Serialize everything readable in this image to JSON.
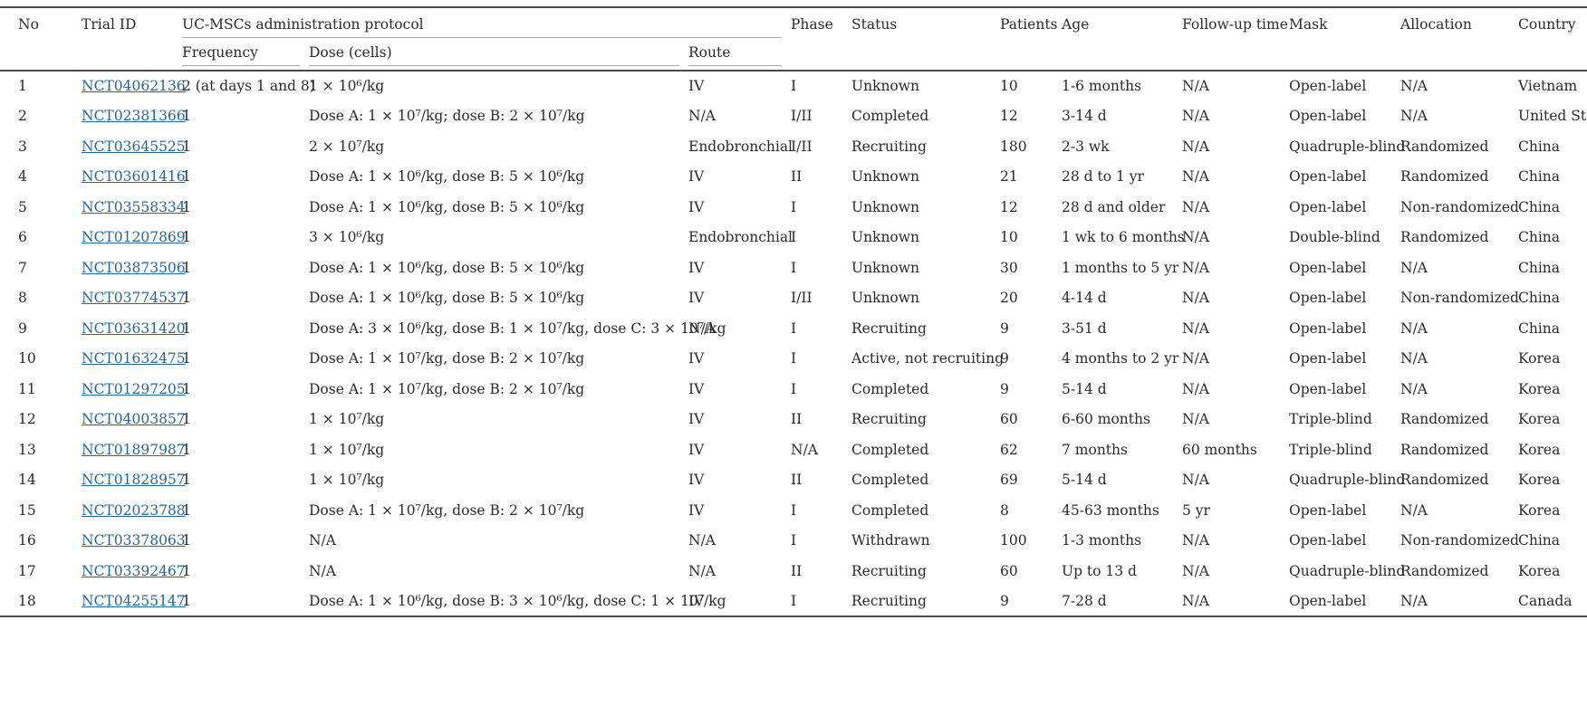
{
  "colors": {
    "background": "#ffffff",
    "text": "#2b2b2b",
    "link_blue": "#26679a",
    "rule_dark": "#4a4a4a",
    "rule_light": "#a9a9a9"
  },
  "table": {
    "group_header": "UC-MSCs administration protocol",
    "headers": {
      "no": "No",
      "trial_id": "Trial ID",
      "frequency": "Frequency",
      "dose": "Dose (cells)",
      "route": "Route",
      "phase": "Phase",
      "status": "Status",
      "patients": "Patients",
      "age": "Age",
      "follow_up": "Follow-up time",
      "mask": "Mask",
      "allocation": "Allocation",
      "country": "Country"
    },
    "rows": [
      [
        "1",
        "NCT04062136",
        "2 (at days 1 and 8)",
        "1 × 10⁶/kg",
        "IV",
        "I",
        "Unknown",
        "10",
        "1-6 months",
        "N/A",
        "Open-label",
        "N/A",
        "Vietnam"
      ],
      [
        "2",
        "NCT02381366",
        "1",
        "Dose A: 1 × 10⁷/kg; dose B: 2 × 10⁷/kg",
        "N/A",
        "I/II",
        "Completed",
        "12",
        "3-14 d",
        "N/A",
        "Open-label",
        "N/A",
        "United States"
      ],
      [
        "3",
        "NCT03645525",
        "1",
        "2 × 10⁷/kg",
        "Endobronchial",
        "I/II",
        "Recruiting",
        "180",
        "2-3 wk",
        "N/A",
        "Quadruple-blind",
        "Randomized",
        "China"
      ],
      [
        "4",
        "NCT03601416",
        "1",
        "Dose A: 1 × 10⁶/kg, dose B: 5 × 10⁶/kg",
        "IV",
        "II",
        "Unknown",
        "21",
        "28 d to 1 yr",
        "N/A",
        "Open-label",
        "Randomized",
        "China"
      ],
      [
        "5",
        "NCT03558334",
        "1",
        "Dose A: 1 × 10⁶/kg, dose B: 5 × 10⁶/kg",
        "IV",
        "I",
        "Unknown",
        "12",
        "28 d and older",
        "N/A",
        "Open-label",
        "Non-randomized",
        "China"
      ],
      [
        "6",
        "NCT01207869",
        "1",
        "3 × 10⁶/kg",
        "Endobronchial",
        "I",
        "Unknown",
        "10",
        "1 wk to 6 months",
        "N/A",
        "Double-blind",
        "Randomized",
        "China"
      ],
      [
        "7",
        "NCT03873506",
        "1",
        "Dose A: 1 × 10⁶/kg, dose B: 5 × 10⁶/kg",
        "IV",
        "I",
        "Unknown",
        "30",
        "1 months to 5 yr",
        "N/A",
        "Open-label",
        "N/A",
        "China"
      ],
      [
        "8",
        "NCT03774537",
        "1",
        "Dose A: 1 × 10⁶/kg, dose B: 5 × 10⁶/kg",
        "IV",
        "I/II",
        "Unknown",
        "20",
        "4-14 d",
        "N/A",
        "Open-label",
        "Non-randomized",
        "China"
      ],
      [
        "9",
        "NCT03631420",
        "1",
        "Dose A: 3 × 10⁶/kg, dose B: 1 × 10⁷/kg, dose C: 3 × 10⁷/kg",
        "N/A",
        "I",
        "Recruiting",
        "9",
        "3-51 d",
        "N/A",
        "Open-label",
        "N/A",
        "China"
      ],
      [
        "10",
        "NCT01632475",
        "1",
        "Dose A: 1 × 10⁷/kg, dose B: 2 × 10⁷/kg",
        "IV",
        "I",
        "Active, not recruiting",
        "9",
        "4 months to 2 yr",
        "N/A",
        "Open-label",
        "N/A",
        "Korea"
      ],
      [
        "11",
        "NCT01297205",
        "1",
        "Dose A: 1 × 10⁷/kg, dose B: 2 × 10⁷/kg",
        "IV",
        "I",
        "Completed",
        "9",
        "5-14 d",
        "N/A",
        "Open-label",
        "N/A",
        "Korea"
      ],
      [
        "12",
        "NCT04003857",
        "1",
        "1 × 10⁷/kg",
        "IV",
        "II",
        "Recruiting",
        "60",
        "6-60 months",
        "N/A",
        "Triple-blind",
        "Randomized",
        "Korea"
      ],
      [
        "13",
        "NCT01897987",
        "1",
        "1 × 10⁷/kg",
        "IV",
        "N/A",
        "Completed",
        "62",
        "7 months",
        "60 months",
        "Triple-blind",
        "Randomized",
        "Korea"
      ],
      [
        "14",
        "NCT01828957",
        "1",
        "1 × 10⁷/kg",
        "IV",
        "II",
        "Completed",
        "69",
        "5-14 d",
        "N/A",
        "Quadruple-blind",
        "Randomized",
        "Korea"
      ],
      [
        "15",
        "NCT02023788",
        "1",
        "Dose A: 1 × 10⁷/kg, dose B: 2 × 10⁷/kg",
        "IV",
        "I",
        "Completed",
        "8",
        "45-63 months",
        "5 yr",
        "Open-label",
        "N/A",
        "Korea"
      ],
      [
        "16",
        "NCT03378063",
        "1",
        "N/A",
        "N/A",
        "I",
        "Withdrawn",
        "100",
        "1-3 months",
        "N/A",
        "Open-label",
        "Non-randomized",
        "China"
      ],
      [
        "17",
        "NCT03392467",
        "1",
        "N/A",
        "N/A",
        "II",
        "Recruiting",
        "60",
        "Up to 13 d",
        "N/A",
        "Quadruple-blind",
        "Randomized",
        "Korea"
      ],
      [
        "18",
        "NCT04255147",
        "1",
        "Dose A: 1 × 10⁶/kg, dose B: 3 × 10⁶/kg, dose C: 1 × 10⁷/kg",
        "IV",
        "I",
        "Recruiting",
        "9",
        "7-28 d",
        "N/A",
        "Open-label",
        "N/A",
        "Canada"
      ]
    ]
  }
}
